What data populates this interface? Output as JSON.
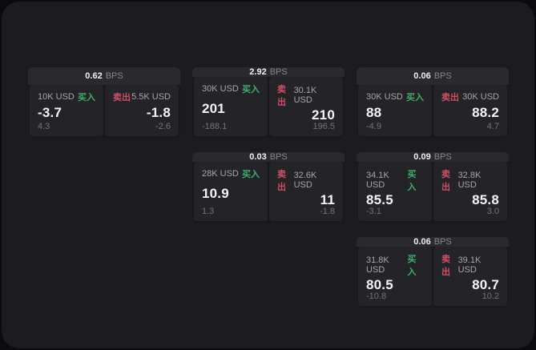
{
  "labels": {
    "bps_unit": "BPS",
    "buy": "买入",
    "sell": "卖出"
  },
  "colors": {
    "buy_green": "#3fae68",
    "sell_red": "#cf4f63",
    "panel_background": "#1c1c1e",
    "card_background": "#2a2a2d",
    "tile_background": "#242428"
  },
  "cards": [
    {
      "bps": "0.62",
      "col": 1,
      "row": 1,
      "buy": {
        "amount": "10K USD",
        "price": "-3.7",
        "delta": "4.3"
      },
      "sell": {
        "amount": "5.5K USD",
        "price": "-1.8",
        "delta": "-2.6"
      }
    },
    {
      "bps": "2.92",
      "col": 2,
      "row": 1,
      "buy": {
        "amount": "30K USD",
        "price": "201",
        "delta": "-188.1"
      },
      "sell": {
        "amount": "30.1K USD",
        "price": "210",
        "delta": "196.5"
      }
    },
    {
      "bps": "0.06",
      "col": 3,
      "row": 1,
      "buy": {
        "amount": "30K USD",
        "price": "88",
        "delta": "-4.9"
      },
      "sell": {
        "amount": "30K USD",
        "price": "88.2",
        "delta": "4.7"
      }
    },
    {
      "bps": "0.03",
      "col": 2,
      "row": 2,
      "buy": {
        "amount": "28K USD",
        "price": "10.9",
        "delta": "1.3"
      },
      "sell": {
        "amount": "32.6K USD",
        "price": "11",
        "delta": "-1.8"
      }
    },
    {
      "bps": "0.09",
      "col": 3,
      "row": 2,
      "buy": {
        "amount": "34.1K USD",
        "price": "85.5",
        "delta": "-3.1"
      },
      "sell": {
        "amount": "32.8K USD",
        "price": "85.8",
        "delta": "3.0"
      }
    },
    {
      "bps": "0.06",
      "col": 3,
      "row": 3,
      "buy": {
        "amount": "31.8K USD",
        "price": "80.5",
        "delta": "-10.8"
      },
      "sell": {
        "amount": "39.1K USD",
        "price": "80.7",
        "delta": "10.2"
      }
    }
  ]
}
